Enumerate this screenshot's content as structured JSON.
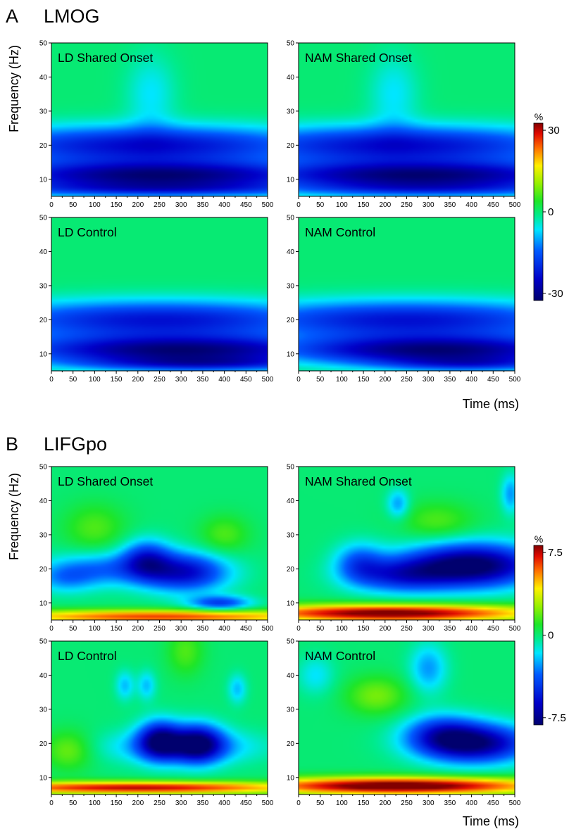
{
  "figure": {
    "sections": [
      {
        "letter": "A",
        "title": "LMOG"
      },
      {
        "letter": "B",
        "title": "LIFGpo"
      }
    ],
    "ylabel": "Frequency (Hz)",
    "xlabel": "Time (ms)"
  },
  "chart_data": [
    {
      "type": "heatmap",
      "section": "A",
      "title": "LD Shared Onset",
      "xlabel": "",
      "ylabel": "Frequency (Hz)",
      "x_ticks": [
        0,
        50,
        100,
        150,
        200,
        250,
        300,
        350,
        400,
        450,
        500
      ],
      "y_ticks": [
        10,
        20,
        30,
        40,
        50
      ],
      "xlim": [
        0,
        500
      ],
      "ylim": [
        5,
        50
      ],
      "colorbar": {
        "label": "%",
        "ticks": [
          "30",
          "0",
          "-30"
        ],
        "min": -30,
        "max": 30
      },
      "blobs": [
        {
          "x": 250,
          "y": 11,
          "sx": 300,
          "sy": 3.0,
          "v": -28
        },
        {
          "x": 220,
          "y": 20,
          "sx": 300,
          "sy": 4.0,
          "v": -22
        },
        {
          "x": 250,
          "y": 7,
          "sx": 300,
          "sy": 1.5,
          "v": -12
        },
        {
          "x": 230,
          "y": 35,
          "sx": 40,
          "sy": 8,
          "v": -6
        }
      ]
    },
    {
      "type": "heatmap",
      "section": "A",
      "title": "NAM Shared Onset",
      "xlabel": "",
      "ylabel": "",
      "x_ticks": [
        0,
        50,
        100,
        150,
        200,
        250,
        300,
        350,
        400,
        450,
        500
      ],
      "y_ticks": [
        10,
        20,
        30,
        40,
        50
      ],
      "xlim": [
        0,
        500
      ],
      "ylim": [
        5,
        50
      ],
      "colorbar": {
        "label": "%",
        "ticks": [
          "30",
          "0",
          "-30"
        ],
        "min": -30,
        "max": 30
      },
      "blobs": [
        {
          "x": 280,
          "y": 11,
          "sx": 300,
          "sy": 3.0,
          "v": -28
        },
        {
          "x": 230,
          "y": 20,
          "sx": 300,
          "sy": 4.0,
          "v": -22
        },
        {
          "x": 300,
          "y": 7,
          "sx": 250,
          "sy": 1.5,
          "v": -10
        },
        {
          "x": 220,
          "y": 35,
          "sx": 40,
          "sy": 8,
          "v": -6
        }
      ]
    },
    {
      "type": "heatmap",
      "section": "A",
      "title": "LD Control",
      "xlabel": "",
      "ylabel": "Frequency (Hz)",
      "x_ticks": [
        0,
        50,
        100,
        150,
        200,
        250,
        300,
        350,
        400,
        450,
        500
      ],
      "y_ticks": [
        10,
        20,
        30,
        40,
        50
      ],
      "xlim": [
        0,
        500
      ],
      "ylim": [
        5,
        50
      ],
      "colorbar": {
        "label": "%",
        "ticks": [
          "30",
          "0",
          "-30"
        ],
        "min": -30,
        "max": 30
      },
      "blobs": [
        {
          "x": 300,
          "y": 11,
          "sx": 280,
          "sy": 3.0,
          "v": -28
        },
        {
          "x": 250,
          "y": 20,
          "sx": 300,
          "sy": 4.0,
          "v": -21
        },
        {
          "x": 350,
          "y": 7,
          "sx": 200,
          "sy": 1.5,
          "v": -14
        }
      ]
    },
    {
      "type": "heatmap",
      "section": "A",
      "title": "NAM Control",
      "xlabel": "",
      "ylabel": "",
      "x_ticks": [
        0,
        50,
        100,
        150,
        200,
        250,
        300,
        350,
        400,
        450,
        500
      ],
      "y_ticks": [
        10,
        20,
        30,
        40,
        50
      ],
      "xlim": [
        0,
        500
      ],
      "ylim": [
        5,
        50
      ],
      "colorbar": {
        "label": "%",
        "ticks": [
          "30",
          "0",
          "-30"
        ],
        "min": -30,
        "max": 30
      },
      "blobs": [
        {
          "x": 320,
          "y": 11,
          "sx": 260,
          "sy": 3.0,
          "v": -28
        },
        {
          "x": 250,
          "y": 20,
          "sx": 300,
          "sy": 4.0,
          "v": -21
        },
        {
          "x": 400,
          "y": 7,
          "sx": 150,
          "sy": 1.5,
          "v": -12
        }
      ]
    },
    {
      "type": "heatmap",
      "section": "B",
      "title": "LD Shared Onset",
      "xlabel": "",
      "ylabel": "Frequency (Hz)",
      "x_ticks": [
        0,
        50,
        100,
        150,
        200,
        250,
        300,
        350,
        400,
        450,
        500
      ],
      "y_ticks": [
        10,
        20,
        30,
        40,
        50
      ],
      "xlim": [
        0,
        500
      ],
      "ylim": [
        5,
        50
      ],
      "colorbar": {
        "label": "%",
        "ticks": [
          "7.5",
          "0",
          "-7.5"
        ],
        "min": -7.5,
        "max": 7.5
      },
      "blobs": [
        {
          "x": 250,
          "y": 6,
          "sx": 300,
          "sy": 1.4,
          "v": 6
        },
        {
          "x": 310,
          "y": 19,
          "sx": 70,
          "sy": 4,
          "v": -5.5
        },
        {
          "x": 220,
          "y": 23,
          "sx": 40,
          "sy": 4,
          "v": -4
        },
        {
          "x": 120,
          "y": 20,
          "sx": 90,
          "sy": 3.5,
          "v": -3
        },
        {
          "x": 390,
          "y": 10,
          "sx": 50,
          "sy": 1.5,
          "v": -4
        },
        {
          "x": 30,
          "y": 17,
          "sx": 50,
          "sy": 3,
          "v": -2
        },
        {
          "x": 400,
          "y": 30,
          "sx": 40,
          "sy": 4,
          "v": 1.5
        },
        {
          "x": 100,
          "y": 32,
          "sx": 50,
          "sy": 5,
          "v": 1.5
        }
      ]
    },
    {
      "type": "heatmap",
      "section": "B",
      "title": "NAM Shared Onset",
      "xlabel": "",
      "ylabel": "",
      "x_ticks": [
        0,
        50,
        100,
        150,
        200,
        250,
        300,
        350,
        400,
        450,
        500
      ],
      "y_ticks": [
        10,
        20,
        30,
        40,
        50
      ],
      "xlim": [
        0,
        500
      ],
      "ylim": [
        5,
        50
      ],
      "colorbar": {
        "label": "%",
        "ticks": [
          "7.5",
          "0",
          "-7.5"
        ],
        "min": -7.5,
        "max": 7.5
      },
      "blobs": [
        {
          "x": 210,
          "y": 7,
          "sx": 250,
          "sy": 1.8,
          "v": 8
        },
        {
          "x": 400,
          "y": 21,
          "sx": 110,
          "sy": 4.5,
          "v": -8
        },
        {
          "x": 230,
          "y": 18,
          "sx": 80,
          "sy": 3.5,
          "v": -4
        },
        {
          "x": 140,
          "y": 22,
          "sx": 40,
          "sy": 4,
          "v": -3
        },
        {
          "x": 230,
          "y": 39,
          "sx": 18,
          "sy": 3,
          "v": -2.5
        },
        {
          "x": 490,
          "y": 42,
          "sx": 15,
          "sy": 4,
          "v": -2.5
        },
        {
          "x": 320,
          "y": 34,
          "sx": 60,
          "sy": 4,
          "v": 1.5
        }
      ]
    },
    {
      "type": "heatmap",
      "section": "B",
      "title": "LD Control",
      "xlabel": "",
      "ylabel": "Frequency (Hz)",
      "x_ticks": [
        0,
        50,
        100,
        150,
        200,
        250,
        300,
        350,
        400,
        450,
        500
      ],
      "y_ticks": [
        10,
        20,
        30,
        40,
        50
      ],
      "xlim": [
        0,
        500
      ],
      "ylim": [
        5,
        50
      ],
      "colorbar": {
        "label": "%",
        "ticks": [
          "7.5",
          "0",
          "-7.5"
        ],
        "min": -7.5,
        "max": 7.5
      },
      "blobs": [
        {
          "x": 200,
          "y": 7,
          "sx": 300,
          "sy": 1.3,
          "v": 7
        },
        {
          "x": 250,
          "y": 21,
          "sx": 35,
          "sy": 4,
          "v": -6
        },
        {
          "x": 340,
          "y": 20,
          "sx": 40,
          "sy": 4,
          "v": -6
        },
        {
          "x": 300,
          "y": 19,
          "sx": 120,
          "sy": 3.5,
          "v": -3
        },
        {
          "x": 170,
          "y": 37,
          "sx": 15,
          "sy": 3,
          "v": -2
        },
        {
          "x": 220,
          "y": 37,
          "sx": 15,
          "sy": 3,
          "v": -2
        },
        {
          "x": 430,
          "y": 36,
          "sx": 15,
          "sy": 3,
          "v": -2
        },
        {
          "x": 40,
          "y": 18,
          "sx": 40,
          "sy": 4,
          "v": 2
        },
        {
          "x": 310,
          "y": 47,
          "sx": 30,
          "sy": 5,
          "v": 1.5
        }
      ]
    },
    {
      "type": "heatmap",
      "section": "B",
      "title": "NAM Control",
      "xlabel": "Time (ms)",
      "ylabel": "",
      "x_ticks": [
        0,
        50,
        100,
        150,
        200,
        250,
        300,
        350,
        400,
        450,
        500
      ],
      "y_ticks": [
        10,
        20,
        30,
        40,
        50
      ],
      "xlim": [
        0,
        500
      ],
      "ylim": [
        5,
        50
      ],
      "colorbar": {
        "label": "%",
        "ticks": [
          "7.5",
          "0",
          "-7.5"
        ],
        "min": -7.5,
        "max": 7.5
      },
      "blobs": [
        {
          "x": 230,
          "y": 7.5,
          "sx": 250,
          "sy": 1.8,
          "v": 8.5
        },
        {
          "x": 410,
          "y": 20,
          "sx": 90,
          "sy": 4,
          "v": -7
        },
        {
          "x": 330,
          "y": 23,
          "sx": 60,
          "sy": 4,
          "v": -3.5
        },
        {
          "x": 300,
          "y": 42,
          "sx": 30,
          "sy": 5,
          "v": -2.5
        },
        {
          "x": 180,
          "y": 34,
          "sx": 50,
          "sy": 4,
          "v": 2
        },
        {
          "x": 40,
          "y": 40,
          "sx": 30,
          "sy": 4,
          "v": -1.5
        }
      ]
    }
  ]
}
